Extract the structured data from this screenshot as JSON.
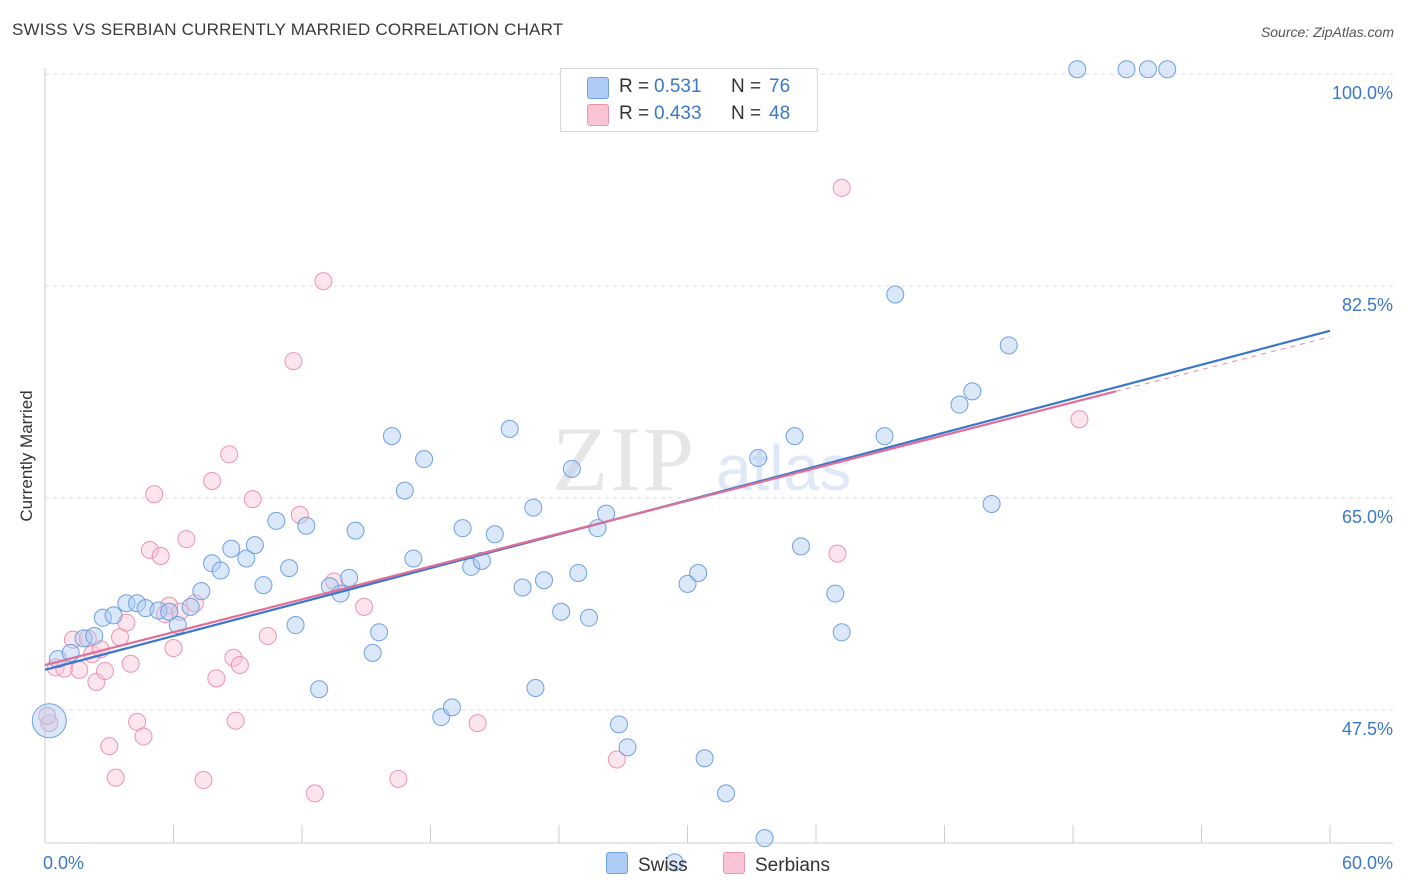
{
  "header": {
    "title": "SWISS VS SERBIAN CURRENTLY MARRIED CORRELATION CHART",
    "source": "Source: ZipAtlas.com"
  },
  "watermark": {
    "zip": "ZIP",
    "atlas": "atlas"
  },
  "legend": {
    "r_label": "R =",
    "n_label": "N =",
    "rows": [
      {
        "name": "Swiss",
        "r": "0.531",
        "n": "76",
        "color": "#aecbf5"
      },
      {
        "name": "Serbians",
        "r": "0.433",
        "n": "48",
        "color": "#f9c5d5"
      }
    ]
  },
  "bottom_legend": {
    "swiss": "Swiss",
    "serbians": "Serbians"
  },
  "chart_data": {
    "type": "scatter",
    "title": "SWISS VS SERBIAN CURRENTLY MARRIED CORRELATION CHART",
    "xlabel": "",
    "ylabel": "Currently Married",
    "xlim": [
      0,
      60
    ],
    "ylim": [
      36.5,
      101
    ],
    "x_tick_labels": [
      "0.0%",
      "60.0%"
    ],
    "y_ticks": [
      47.5,
      65.0,
      82.5,
      100.0
    ],
    "y_tick_labels": [
      "47.5%",
      "65.0%",
      "82.5%",
      "100.0%"
    ],
    "series": [
      {
        "name": "Swiss",
        "color": "#6fa0e0",
        "fill": "rgba(174,203,245,0.45)",
        "line_color": "#3a76cc",
        "trend": {
          "x": [
            0,
            60
          ],
          "y": [
            50.8,
            78.8
          ]
        },
        "points": [
          [
            0.2,
            46.6
          ],
          [
            0.6,
            51.7
          ],
          [
            1.2,
            52.2
          ],
          [
            1.8,
            53.4
          ],
          [
            2.3,
            53.6
          ],
          [
            2.7,
            55.1
          ],
          [
            3.2,
            55.3
          ],
          [
            3.8,
            56.3
          ],
          [
            4.3,
            56.3
          ],
          [
            4.7,
            55.9
          ],
          [
            5.3,
            55.7
          ],
          [
            5.8,
            55.6
          ],
          [
            6.2,
            54.5
          ],
          [
            6.8,
            56.0
          ],
          [
            7.3,
            57.3
          ],
          [
            7.8,
            59.6
          ],
          [
            8.2,
            59.0
          ],
          [
            8.7,
            60.8
          ],
          [
            9.4,
            60.0
          ],
          [
            9.8,
            61.1
          ],
          [
            10.2,
            57.8
          ],
          [
            10.8,
            63.1
          ],
          [
            11.4,
            59.2
          ],
          [
            11.7,
            54.5
          ],
          [
            12.2,
            62.7
          ],
          [
            12.8,
            49.2
          ],
          [
            13.3,
            57.7
          ],
          [
            13.8,
            57.1
          ],
          [
            14.2,
            58.4
          ],
          [
            14.5,
            62.3
          ],
          [
            15.3,
            52.2
          ],
          [
            15.6,
            53.9
          ],
          [
            16.2,
            70.1
          ],
          [
            16.8,
            65.6
          ],
          [
            17.2,
            60.0
          ],
          [
            17.7,
            68.2
          ],
          [
            18.5,
            46.9
          ],
          [
            19.0,
            47.7
          ],
          [
            19.5,
            62.5
          ],
          [
            19.9,
            59.3
          ],
          [
            20.4,
            59.8
          ],
          [
            21.0,
            62.0
          ],
          [
            21.7,
            70.7
          ],
          [
            22.3,
            57.6
          ],
          [
            22.8,
            64.2
          ],
          [
            22.9,
            49.3
          ],
          [
            23.3,
            58.2
          ],
          [
            24.1,
            55.6
          ],
          [
            24.6,
            67.4
          ],
          [
            24.9,
            58.8
          ],
          [
            25.4,
            55.1
          ],
          [
            25.8,
            62.5
          ],
          [
            26.2,
            63.7
          ],
          [
            26.8,
            46.3
          ],
          [
            27.2,
            44.4
          ],
          [
            29.4,
            34.9
          ],
          [
            30.0,
            57.9
          ],
          [
            30.5,
            58.8
          ],
          [
            30.8,
            43.5
          ],
          [
            31.8,
            40.6
          ],
          [
            33.3,
            68.3
          ],
          [
            33.6,
            36.9
          ],
          [
            35.0,
            70.1
          ],
          [
            35.3,
            61.0
          ],
          [
            36.9,
            57.1
          ],
          [
            37.2,
            53.9
          ],
          [
            39.2,
            70.1
          ],
          [
            39.7,
            81.8
          ],
          [
            42.7,
            72.7
          ],
          [
            43.3,
            73.8
          ],
          [
            44.2,
            64.5
          ],
          [
            45.0,
            77.6
          ],
          [
            48.2,
            100.4
          ],
          [
            50.5,
            100.4
          ],
          [
            51.5,
            100.4
          ],
          [
            52.4,
            100.4
          ]
        ]
      },
      {
        "name": "Serbians",
        "color": "#ec94b0",
        "fill": "rgba(249,197,213,0.45)",
        "line_color": "#e06e97",
        "trend": {
          "x": [
            0,
            50
          ],
          "y": [
            51.2,
            73.8
          ]
        },
        "trend_dashed": {
          "x": [
            50,
            60
          ],
          "y": [
            73.8,
            78.3
          ]
        },
        "points": [
          [
            0.2,
            46.4
          ],
          [
            0.5,
            51.0
          ],
          [
            0.9,
            50.9
          ],
          [
            1.3,
            53.3
          ],
          [
            1.6,
            50.8
          ],
          [
            2.0,
            53.4
          ],
          [
            2.2,
            52.1
          ],
          [
            2.4,
            49.8
          ],
          [
            2.6,
            52.5
          ],
          [
            2.8,
            50.7
          ],
          [
            3.0,
            44.5
          ],
          [
            3.3,
            41.9
          ],
          [
            3.5,
            53.5
          ],
          [
            3.8,
            54.7
          ],
          [
            4.0,
            51.3
          ],
          [
            4.3,
            46.5
          ],
          [
            4.6,
            45.3
          ],
          [
            4.9,
            60.7
          ],
          [
            5.1,
            65.3
          ],
          [
            5.4,
            60.2
          ],
          [
            5.6,
            55.4
          ],
          [
            5.8,
            56.1
          ],
          [
            6.0,
            52.6
          ],
          [
            6.3,
            55.6
          ],
          [
            6.6,
            61.6
          ],
          [
            7.0,
            56.3
          ],
          [
            7.4,
            41.7
          ],
          [
            7.8,
            66.4
          ],
          [
            8.0,
            50.1
          ],
          [
            8.6,
            68.6
          ],
          [
            8.8,
            51.8
          ],
          [
            8.9,
            46.6
          ],
          [
            9.1,
            51.2
          ],
          [
            9.7,
            64.9
          ],
          [
            10.4,
            53.6
          ],
          [
            11.6,
            76.3
          ],
          [
            11.9,
            63.6
          ],
          [
            12.6,
            40.6
          ],
          [
            13.0,
            82.9
          ],
          [
            13.5,
            58.1
          ],
          [
            14.9,
            56.0
          ],
          [
            16.5,
            41.8
          ],
          [
            20.2,
            46.4
          ],
          [
            26.7,
            43.4
          ],
          [
            37.0,
            60.4
          ],
          [
            37.2,
            90.6
          ],
          [
            48.3,
            71.5
          ],
          [
            0.1,
            47.0
          ]
        ]
      }
    ]
  }
}
